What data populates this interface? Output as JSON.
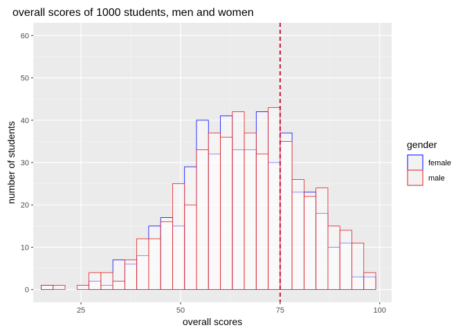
{
  "chart_data": {
    "type": "histogram",
    "title": "overall scores of 1000 students, men and women",
    "xlabel": "overall scores",
    "ylabel": "number of students",
    "xlim": [
      13,
      103
    ],
    "ylim": [
      -3,
      63
    ],
    "x_ticks": [
      25,
      50,
      75,
      100
    ],
    "y_ticks": [
      0,
      10,
      20,
      30,
      40,
      50,
      60
    ],
    "bin_start": 15,
    "bin_width": 3,
    "grid": true,
    "legend": {
      "title": "gender",
      "position": "right"
    },
    "vline": {
      "x": 75,
      "color": "#c8143c",
      "style": "dashed"
    },
    "series": [
      {
        "name": "female",
        "color": "#0000ff",
        "values": [
          1,
          0,
          0,
          0,
          2,
          1,
          7,
          6,
          8,
          15,
          17,
          15,
          29,
          40,
          32,
          41,
          33,
          33,
          42,
          30,
          37,
          23,
          23,
          18,
          10,
          11,
          3,
          3
        ]
      },
      {
        "name": "male",
        "color": "#e41a1c",
        "values": [
          1,
          1,
          0,
          1,
          4,
          4,
          2,
          7,
          12,
          12,
          16,
          25,
          20,
          33,
          37,
          36,
          42,
          37,
          32,
          43,
          35,
          26,
          22,
          24,
          15,
          14,
          11,
          4
        ]
      }
    ]
  }
}
